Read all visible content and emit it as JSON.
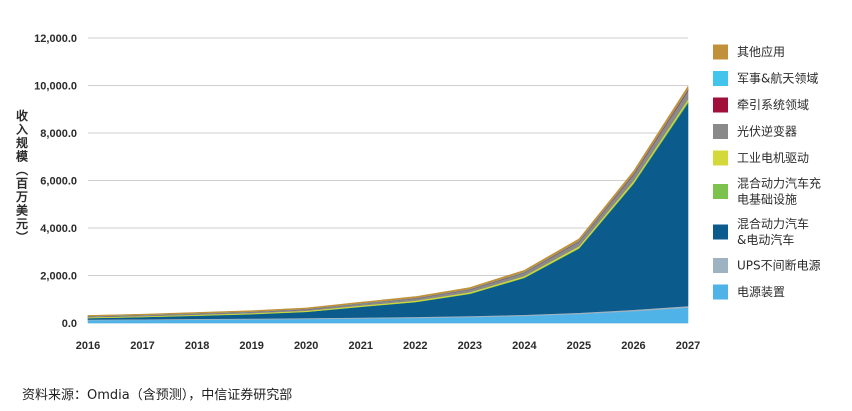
{
  "chart_data": {
    "type": "area",
    "stacked": true,
    "ylabel": "收入规模（百万美元）",
    "x": [
      "2016",
      "2017",
      "2018",
      "2019",
      "2020",
      "2021",
      "2022",
      "2023",
      "2024",
      "2025",
      "2026",
      "2027"
    ],
    "ylim": [
      0,
      12000
    ],
    "yticks": [
      "0.0",
      "2,000.0",
      "4,000.0",
      "6,000.0",
      "8,000.0",
      "10,000.0",
      "12,000.0"
    ],
    "grid": true,
    "legend_position": "right",
    "series": [
      {
        "name": "电源装置",
        "color": "#4fb3e8",
        "values": [
          120,
          130,
          145,
          155,
          170,
          190,
          215,
          250,
          300,
          380,
          500,
          650
        ]
      },
      {
        "name": "UPS不间断电源",
        "color": "#9eb3c2",
        "values": [
          30,
          32,
          35,
          38,
          40,
          42,
          45,
          48,
          50,
          55,
          60,
          65
        ]
      },
      {
        "name": "混合动力汽车\n&电动汽车",
        "color": "#0b5b8c",
        "values": [
          60,
          90,
          130,
          180,
          260,
          450,
          620,
          930,
          1550,
          2700,
          5300,
          8550
        ]
      },
      {
        "name": "混合动力汽车充\n电基础设施",
        "color": "#7dc24d",
        "values": [
          5,
          5,
          6,
          7,
          8,
          10,
          12,
          15,
          20,
          30,
          45,
          70
        ]
      },
      {
        "name": "工业电机驱动",
        "color": "#d3d93a",
        "values": [
          30,
          32,
          35,
          38,
          40,
          45,
          50,
          55,
          60,
          70,
          80,
          90
        ]
      },
      {
        "name": "光伏逆变器",
        "color": "#8a8a8a",
        "values": [
          30,
          35,
          40,
          45,
          55,
          70,
          90,
          110,
          140,
          190,
          260,
          360
        ]
      },
      {
        "name": "牵引系统领域",
        "color": "#a10f3b",
        "values": [
          5,
          5,
          6,
          6,
          7,
          8,
          10,
          12,
          15,
          18,
          25,
          35
        ]
      },
      {
        "name": "军事&航天领域",
        "color": "#43c4ec",
        "values": [
          10,
          10,
          11,
          12,
          12,
          13,
          14,
          15,
          16,
          18,
          20,
          25
        ]
      },
      {
        "name": "其他应用",
        "color": "#c0913a",
        "values": [
          30,
          32,
          35,
          40,
          45,
          50,
          55,
          60,
          70,
          80,
          100,
          120
        ]
      }
    ]
  },
  "source_note": "资料来源：Omdia（含预测），中信证券研究部"
}
